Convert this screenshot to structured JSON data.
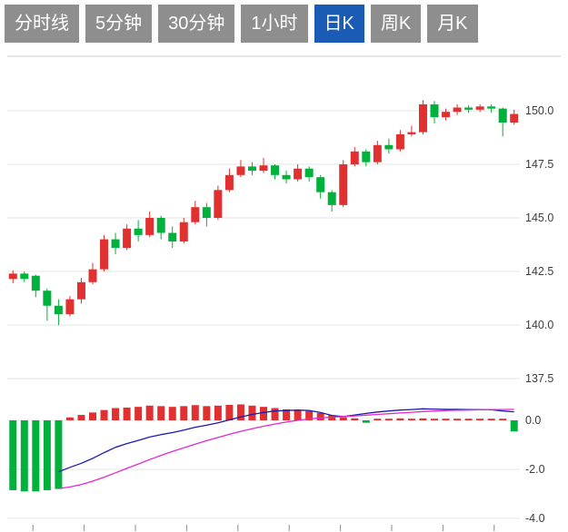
{
  "toolbar": {
    "tabs": [
      {
        "id": "timeline",
        "label": "分时线",
        "active": false
      },
      {
        "id": "5min",
        "label": "5分钟",
        "active": false
      },
      {
        "id": "30min",
        "label": "30分钟",
        "active": false
      },
      {
        "id": "1hour",
        "label": "1小时",
        "active": false
      },
      {
        "id": "daily-k",
        "label": "日K",
        "active": true
      },
      {
        "id": "weekly-k",
        "label": "周K",
        "active": false
      },
      {
        "id": "monthly-k",
        "label": "月K",
        "active": false
      }
    ]
  },
  "colors": {
    "up": "#e03030",
    "down": "#00b13c",
    "dif_line": "#1a1ab0",
    "dea_line": "#e329cc",
    "grid": "#e4e4e4",
    "panel_border": "#cccccc",
    "axis_text": "#3c3c3c",
    "tab_bg": "#8e8e8e",
    "tab_active_bg": "#1a5bb5",
    "tab_text": "#ffffff"
  },
  "chart_data": {
    "type": "candlestick+macd",
    "title": "",
    "legend": "none",
    "grid": true,
    "y_axis_position": "right",
    "price_axis": {
      "ticks": [
        150.0,
        147.5,
        145.0,
        142.5,
        140.0,
        137.5
      ],
      "labels": [
        "150.0",
        "147.5",
        "145.0",
        "142.5",
        "140.0",
        "137.5"
      ],
      "range_hint": [
        137.5,
        152.5
      ]
    },
    "macd_axis": {
      "ticks": [
        0.0,
        -2.0,
        -4.0
      ],
      "labels": [
        "0.0",
        "-2.0",
        "-4.0"
      ],
      "range_hint": [
        -4.5,
        1.0
      ]
    },
    "candles_order": "open,high,low,close",
    "candles": [
      [
        142.15,
        142.55,
        141.95,
        142.4
      ],
      [
        142.4,
        142.5,
        142.0,
        142.15
      ],
      [
        142.3,
        142.35,
        141.3,
        141.6
      ],
      [
        141.6,
        141.7,
        140.2,
        140.9
      ],
      [
        140.9,
        141.2,
        140.0,
        140.5
      ],
      [
        140.5,
        141.35,
        140.4,
        141.2
      ],
      [
        141.2,
        142.2,
        141.0,
        142.0
      ],
      [
        142.0,
        142.9,
        141.9,
        142.6
      ],
      [
        142.6,
        144.2,
        142.5,
        144.0
      ],
      [
        144.0,
        144.3,
        143.3,
        143.6
      ],
      [
        143.6,
        144.7,
        143.5,
        144.5
      ],
      [
        144.5,
        144.9,
        143.9,
        144.2
      ],
      [
        144.2,
        145.3,
        144.1,
        145.0
      ],
      [
        145.0,
        145.1,
        144.0,
        144.3
      ],
      [
        144.3,
        144.6,
        143.6,
        143.9
      ],
      [
        143.9,
        145.0,
        143.8,
        144.8
      ],
      [
        144.8,
        145.8,
        144.7,
        145.5
      ],
      [
        145.5,
        145.7,
        144.6,
        145.0
      ],
      [
        145.0,
        146.5,
        144.9,
        146.3
      ],
      [
        146.3,
        147.3,
        146.2,
        147.0
      ],
      [
        147.0,
        147.7,
        146.9,
        147.4
      ],
      [
        147.4,
        147.6,
        147.0,
        147.2
      ],
      [
        147.2,
        147.8,
        147.1,
        147.45
      ],
      [
        147.45,
        147.5,
        146.8,
        147.0
      ],
      [
        147.0,
        147.2,
        146.6,
        146.8
      ],
      [
        146.8,
        147.5,
        146.7,
        147.3
      ],
      [
        147.3,
        147.4,
        146.7,
        146.9
      ],
      [
        146.9,
        147.0,
        145.9,
        146.2
      ],
      [
        146.2,
        146.3,
        145.3,
        145.6
      ],
      [
        145.6,
        147.7,
        145.5,
        147.5
      ],
      [
        147.5,
        148.3,
        147.4,
        148.1
      ],
      [
        148.1,
        148.2,
        147.4,
        147.6
      ],
      [
        147.6,
        148.6,
        147.5,
        148.4
      ],
      [
        148.4,
        148.7,
        148.0,
        148.2
      ],
      [
        148.2,
        149.1,
        148.1,
        148.9
      ],
      [
        148.9,
        149.3,
        148.8,
        149.0
      ],
      [
        149.0,
        150.5,
        148.9,
        150.3
      ],
      [
        150.3,
        150.45,
        149.4,
        149.7
      ],
      [
        149.7,
        150.1,
        149.55,
        149.95
      ],
      [
        149.95,
        150.3,
        149.8,
        150.15
      ],
      [
        150.15,
        150.25,
        149.9,
        150.05
      ],
      [
        150.05,
        150.3,
        149.95,
        150.2
      ],
      [
        150.2,
        150.3,
        149.9,
        150.1
      ],
      [
        150.1,
        150.15,
        148.8,
        149.45
      ],
      [
        149.45,
        150.05,
        149.35,
        149.85
      ]
    ],
    "macd": {
      "hist": [
        -2.85,
        -2.9,
        -2.9,
        -2.85,
        -2.8,
        0.12,
        0.22,
        0.32,
        0.42,
        0.5,
        0.52,
        0.55,
        0.6,
        0.58,
        0.55,
        0.58,
        0.62,
        0.58,
        0.6,
        0.63,
        0.65,
        0.6,
        0.55,
        0.5,
        0.45,
        0.42,
        0.38,
        0.3,
        0.2,
        0.12,
        0.08,
        -0.1,
        0.06,
        0.05,
        0.08,
        0.06,
        0.08,
        0.05,
        0.06,
        0.05,
        0.05,
        0.06,
        0.05,
        0.05,
        -0.45
      ],
      "dif": [
        null,
        null,
        null,
        null,
        -2.1,
        -1.92,
        -1.75,
        -1.55,
        -1.32,
        -1.1,
        -0.95,
        -0.82,
        -0.68,
        -0.58,
        -0.5,
        -0.4,
        -0.28,
        -0.2,
        -0.1,
        0.02,
        0.14,
        0.24,
        0.32,
        0.38,
        0.4,
        0.42,
        0.4,
        0.32,
        0.2,
        0.15,
        0.22,
        0.28,
        0.34,
        0.38,
        0.42,
        0.44,
        0.47,
        0.46,
        0.45,
        0.45,
        0.44,
        0.44,
        0.43,
        0.38,
        0.35
      ],
      "dea": [
        null,
        null,
        null,
        null,
        -2.78,
        -2.72,
        -2.62,
        -2.48,
        -2.32,
        -2.14,
        -1.96,
        -1.78,
        -1.6,
        -1.43,
        -1.27,
        -1.12,
        -0.97,
        -0.83,
        -0.7,
        -0.57,
        -0.45,
        -0.34,
        -0.24,
        -0.15,
        -0.07,
        0.0,
        0.06,
        0.1,
        0.13,
        0.15,
        0.18,
        0.21,
        0.24,
        0.27,
        0.3,
        0.33,
        0.36,
        0.38,
        0.4,
        0.41,
        0.42,
        0.43,
        0.44,
        0.44,
        0.45
      ]
    }
  }
}
